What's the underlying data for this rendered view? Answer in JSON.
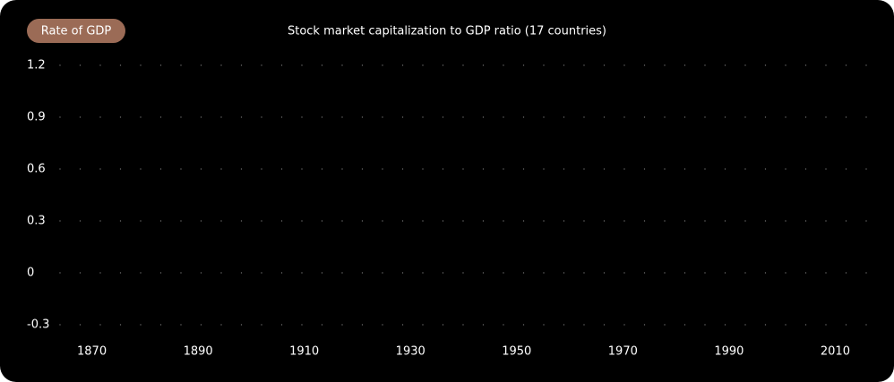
{
  "chart_data": {
    "type": "line",
    "title": "Stock market capitalization to GDP ratio (17 countries)",
    "ylabel": "Rate of GDP",
    "series": [],
    "xlim": [
      1864,
      2016
    ],
    "xticks": [
      1870,
      1890,
      1910,
      1930,
      1950,
      1970,
      1990,
      2010
    ],
    "ylim": [
      -0.3,
      1.2
    ],
    "yticks": [
      1.2,
      0.9,
      0.6,
      0.3,
      0,
      -0.3
    ],
    "grid": true,
    "grid_style": "dotted",
    "background": "#000000",
    "badge_color": "#9b6b56"
  }
}
